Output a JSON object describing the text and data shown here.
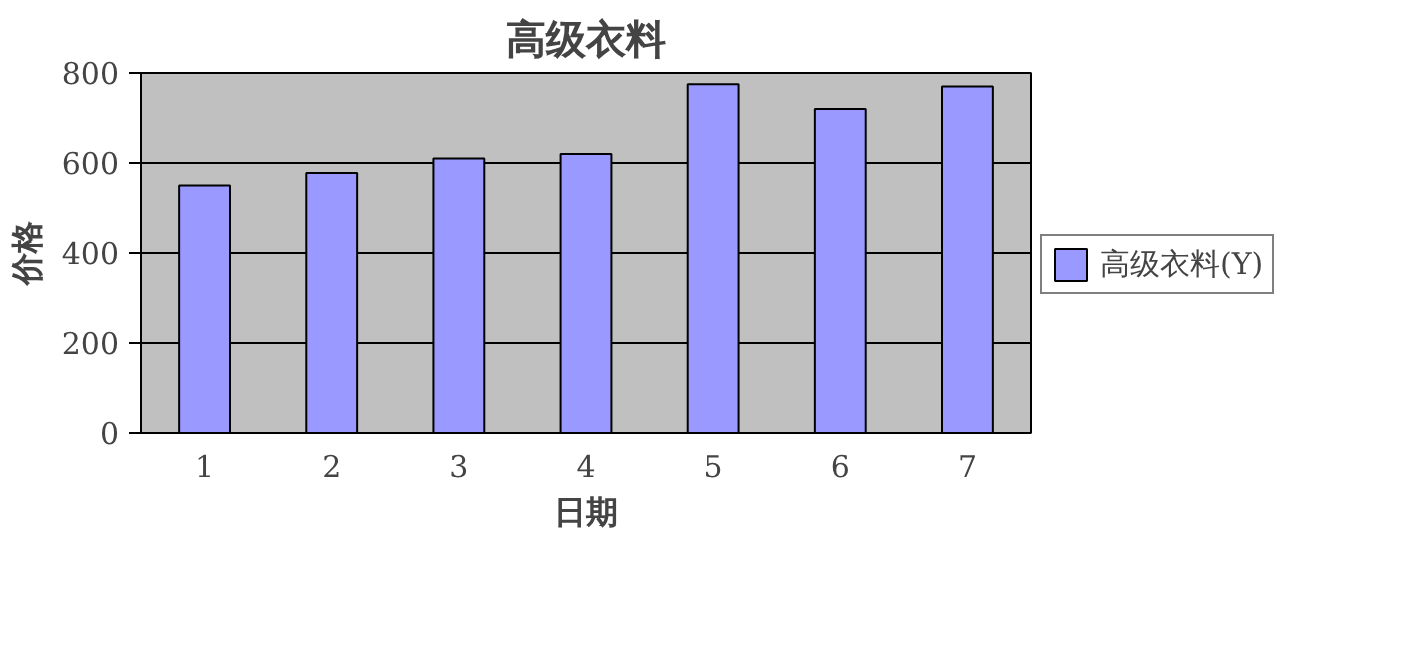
{
  "chart_data": {
    "type": "bar",
    "title": "高级衣料",
    "xlabel": "日期",
    "ylabel": "价格",
    "categories": [
      "1",
      "2",
      "3",
      "4",
      "5",
      "6",
      "7"
    ],
    "series": [
      {
        "name": "高级衣料(Y)",
        "color": "#9999ff",
        "values": [
          550,
          578,
          610,
          620,
          775,
          720,
          770
        ]
      }
    ],
    "ylim": [
      0,
      800
    ],
    "yticks": [
      0,
      200,
      400,
      600,
      800
    ],
    "grid": "y",
    "legend": "right"
  }
}
